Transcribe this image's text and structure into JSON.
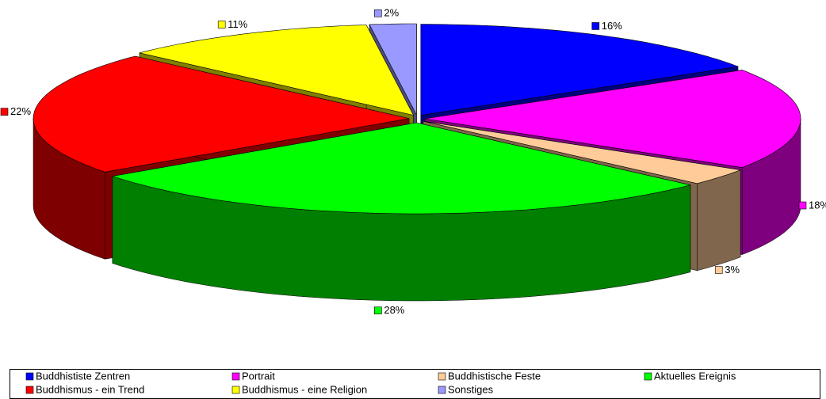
{
  "chart_data": {
    "type": "pie",
    "three_d": true,
    "exploded": true,
    "categories": [
      "Buddhististe Zentren",
      "Portrait",
      "Buddhistische Feste",
      "Aktuelles Ereignis",
      "Buddhismus - ein Trend",
      "Buddhismus - eine Religion",
      "Sonstiges"
    ],
    "values": [
      16,
      18,
      3,
      28,
      22,
      11,
      2
    ],
    "value_labels": [
      "16%",
      "18%",
      "3%",
      "28%",
      "22%",
      "11%",
      "2%"
    ],
    "colors": [
      "#0000ff",
      "#ff00ff",
      "#ffcc99",
      "#00ff00",
      "#ff0000",
      "#ffff00",
      "#9999ff"
    ],
    "legend": "bottom"
  }
}
